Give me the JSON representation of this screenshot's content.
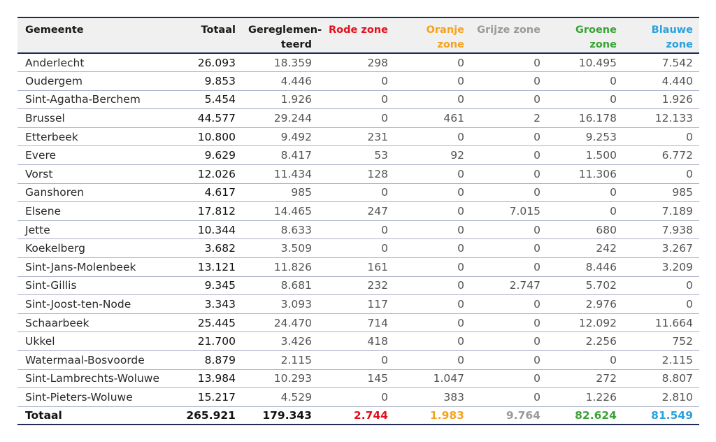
{
  "colors": {
    "rode": "#e3101c",
    "oranje": "#f5a21e",
    "grijs": "#9a9a9a",
    "groen": "#3aa335",
    "blauw": "#2ba1dc",
    "rule": "#1f2a57"
  },
  "headers": {
    "gemeente": "Gemeente",
    "totaal": "Totaal",
    "gereglementeerd_line1": "Gereglemen-",
    "gereglementeerd_line2": "teerd",
    "rode": "Rode zone",
    "oranje": "Oranje zone",
    "grijs": "Grijze zone",
    "groen": "Groene zone",
    "blauw": "Blauwe zone"
  },
  "rows": [
    {
      "gemeente": "Anderlecht",
      "totaal": "26.093",
      "gereglementeerd": "18.359",
      "rode": "298",
      "oranje": "0",
      "grijs": "0",
      "groen": "10.495",
      "blauw": "7.542"
    },
    {
      "gemeente": "Oudergem",
      "totaal": "9.853",
      "gereglementeerd": "4.446",
      "rode": "0",
      "oranje": "0",
      "grijs": "0",
      "groen": "0",
      "blauw": "4.440"
    },
    {
      "gemeente": "Sint-Agatha-Berchem",
      "totaal": "5.454",
      "gereglementeerd": "1.926",
      "rode": "0",
      "oranje": "0",
      "grijs": "0",
      "groen": "0",
      "blauw": "1.926"
    },
    {
      "gemeente": "Brussel",
      "totaal": "44.577",
      "gereglementeerd": "29.244",
      "rode": "0",
      "oranje": "461",
      "grijs": "2",
      "groen": "16.178",
      "blauw": "12.133"
    },
    {
      "gemeente": "Etterbeek",
      "totaal": "10.800",
      "gereglementeerd": "9.492",
      "rode": "231",
      "oranje": "0",
      "grijs": "0",
      "groen": "9.253",
      "blauw": "0"
    },
    {
      "gemeente": "Evere",
      "totaal": "9.629",
      "gereglementeerd": "8.417",
      "rode": "53",
      "oranje": "92",
      "grijs": "0",
      "groen": "1.500",
      "blauw": "6.772"
    },
    {
      "gemeente": "Vorst",
      "totaal": "12.026",
      "gereglementeerd": "11.434",
      "rode": "128",
      "oranje": "0",
      "grijs": "0",
      "groen": "11.306",
      "blauw": "0"
    },
    {
      "gemeente": "Ganshoren",
      "totaal": "4.617",
      "gereglementeerd": "985",
      "rode": "0",
      "oranje": "0",
      "grijs": "0",
      "groen": "0",
      "blauw": "985"
    },
    {
      "gemeente": "Elsene",
      "totaal": "17.812",
      "gereglementeerd": "14.465",
      "rode": "247",
      "oranje": "0",
      "grijs": "7.015",
      "groen": "0",
      "blauw": "7.189"
    },
    {
      "gemeente": "Jette",
      "totaal": "10.344",
      "gereglementeerd": "8.633",
      "rode": "0",
      "oranje": "0",
      "grijs": "0",
      "groen": "680",
      "blauw": "7.938"
    },
    {
      "gemeente": "Koekelberg",
      "totaal": "3.682",
      "gereglementeerd": "3.509",
      "rode": "0",
      "oranje": "0",
      "grijs": "0",
      "groen": "242",
      "blauw": "3.267"
    },
    {
      "gemeente": "Sint-Jans-Molenbeek",
      "totaal": "13.121",
      "gereglementeerd": "11.826",
      "rode": "161",
      "oranje": "0",
      "grijs": "0",
      "groen": "8.446",
      "blauw": "3.209"
    },
    {
      "gemeente": "Sint-Gillis",
      "totaal": "9.345",
      "gereglementeerd": "8.681",
      "rode": "232",
      "oranje": "0",
      "grijs": "2.747",
      "groen": "5.702",
      "blauw": "0"
    },
    {
      "gemeente": "Sint-Joost-ten-Node",
      "totaal": "3.343",
      "gereglementeerd": "3.093",
      "rode": "117",
      "oranje": "0",
      "grijs": "0",
      "groen": "2.976",
      "blauw": "0"
    },
    {
      "gemeente": "Schaarbeek",
      "totaal": "25.445",
      "gereglementeerd": "24.470",
      "rode": "714",
      "oranje": "0",
      "grijs": "0",
      "groen": "12.092",
      "blauw": "11.664"
    },
    {
      "gemeente": "Ukkel",
      "totaal": "21.700",
      "gereglementeerd": "3.426",
      "rode": "418",
      "oranje": "0",
      "grijs": "0",
      "groen": "2.256",
      "blauw": "752"
    },
    {
      "gemeente": "Watermaal-Bosvoorde",
      "totaal": "8.879",
      "gereglementeerd": "2.115",
      "rode": "0",
      "oranje": "0",
      "grijs": "0",
      "groen": "0",
      "blauw": "2.115"
    },
    {
      "gemeente": "Sint-Lambrechts-Woluwe",
      "totaal": "13.984",
      "gereglementeerd": "10.293",
      "rode": "145",
      "oranje": "1.047",
      "grijs": "0",
      "groen": "272",
      "blauw": "8.807"
    },
    {
      "gemeente": "Sint-Pieters-Woluwe",
      "totaal": "15.217",
      "gereglementeerd": "4.529",
      "rode": "0",
      "oranje": "383",
      "grijs": "0",
      "groen": "1.226",
      "blauw": "2.810"
    }
  ],
  "total": {
    "gemeente": "Totaal",
    "totaal": "265.921",
    "gereglementeerd": "179.343",
    "rode": "2.744",
    "oranje": "1.983",
    "grijs": "9.764",
    "groen": "82.624",
    "blauw": "81.549"
  }
}
